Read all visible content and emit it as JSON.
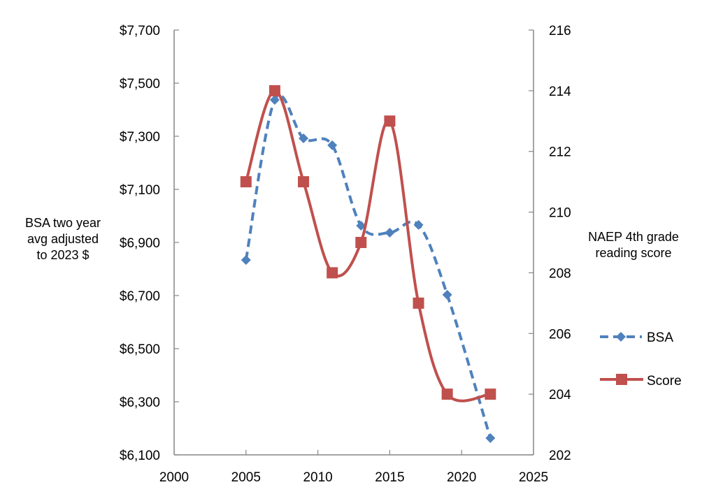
{
  "chart_data": {
    "type": "line",
    "title": "",
    "xlabel": "",
    "ylabel": "BSA two year avg adjusted to 2023 $",
    "y2label": "NAEP 4th grade reading score",
    "xlim": [
      2000,
      2025
    ],
    "xticks": [
      2000,
      2005,
      2010,
      2015,
      2020,
      2025
    ],
    "ylim": [
      6100,
      7700
    ],
    "yticks": [
      6100,
      6300,
      6500,
      6700,
      6900,
      7100,
      7300,
      7500,
      7700
    ],
    "ytick_labels": [
      "$6,100",
      "$6,300",
      "$6,500",
      "$6,700",
      "$6,900",
      "$7,100",
      "$7,300",
      "$7,500",
      "$7,700"
    ],
    "y2lim": [
      202,
      216
    ],
    "y2ticks": [
      202,
      204,
      206,
      208,
      210,
      212,
      214,
      216
    ],
    "grid": false,
    "legend_position": "right",
    "series": [
      {
        "name": "BSA",
        "axis": "left",
        "color": "#4F81BD",
        "style": "dashed-smooth",
        "marker": "diamond",
        "x": [
          2005,
          2007,
          2009,
          2011,
          2013,
          2015,
          2017,
          2019,
          2022
        ],
        "values": [
          6834,
          7437,
          7292,
          7266,
          6963,
          6937,
          6966,
          6703,
          6163
        ]
      },
      {
        "name": "Score",
        "axis": "right",
        "color": "#C0504D",
        "style": "solid-smooth",
        "marker": "square",
        "x": [
          2005,
          2007,
          2009,
          2011,
          2013,
          2015,
          2017,
          2019,
          2022
        ],
        "values": [
          211,
          214,
          211,
          208,
          209,
          213,
          207,
          204,
          204
        ]
      }
    ]
  },
  "labels": {
    "left_axis_title_lines": [
      "BSA two year",
      "avg adjusted",
      "to 2023 $"
    ],
    "right_axis_title_lines": [
      "NAEP 4th grade",
      "reading score"
    ],
    "legend": [
      {
        "label": "BSA"
      },
      {
        "label": "Score"
      }
    ]
  }
}
